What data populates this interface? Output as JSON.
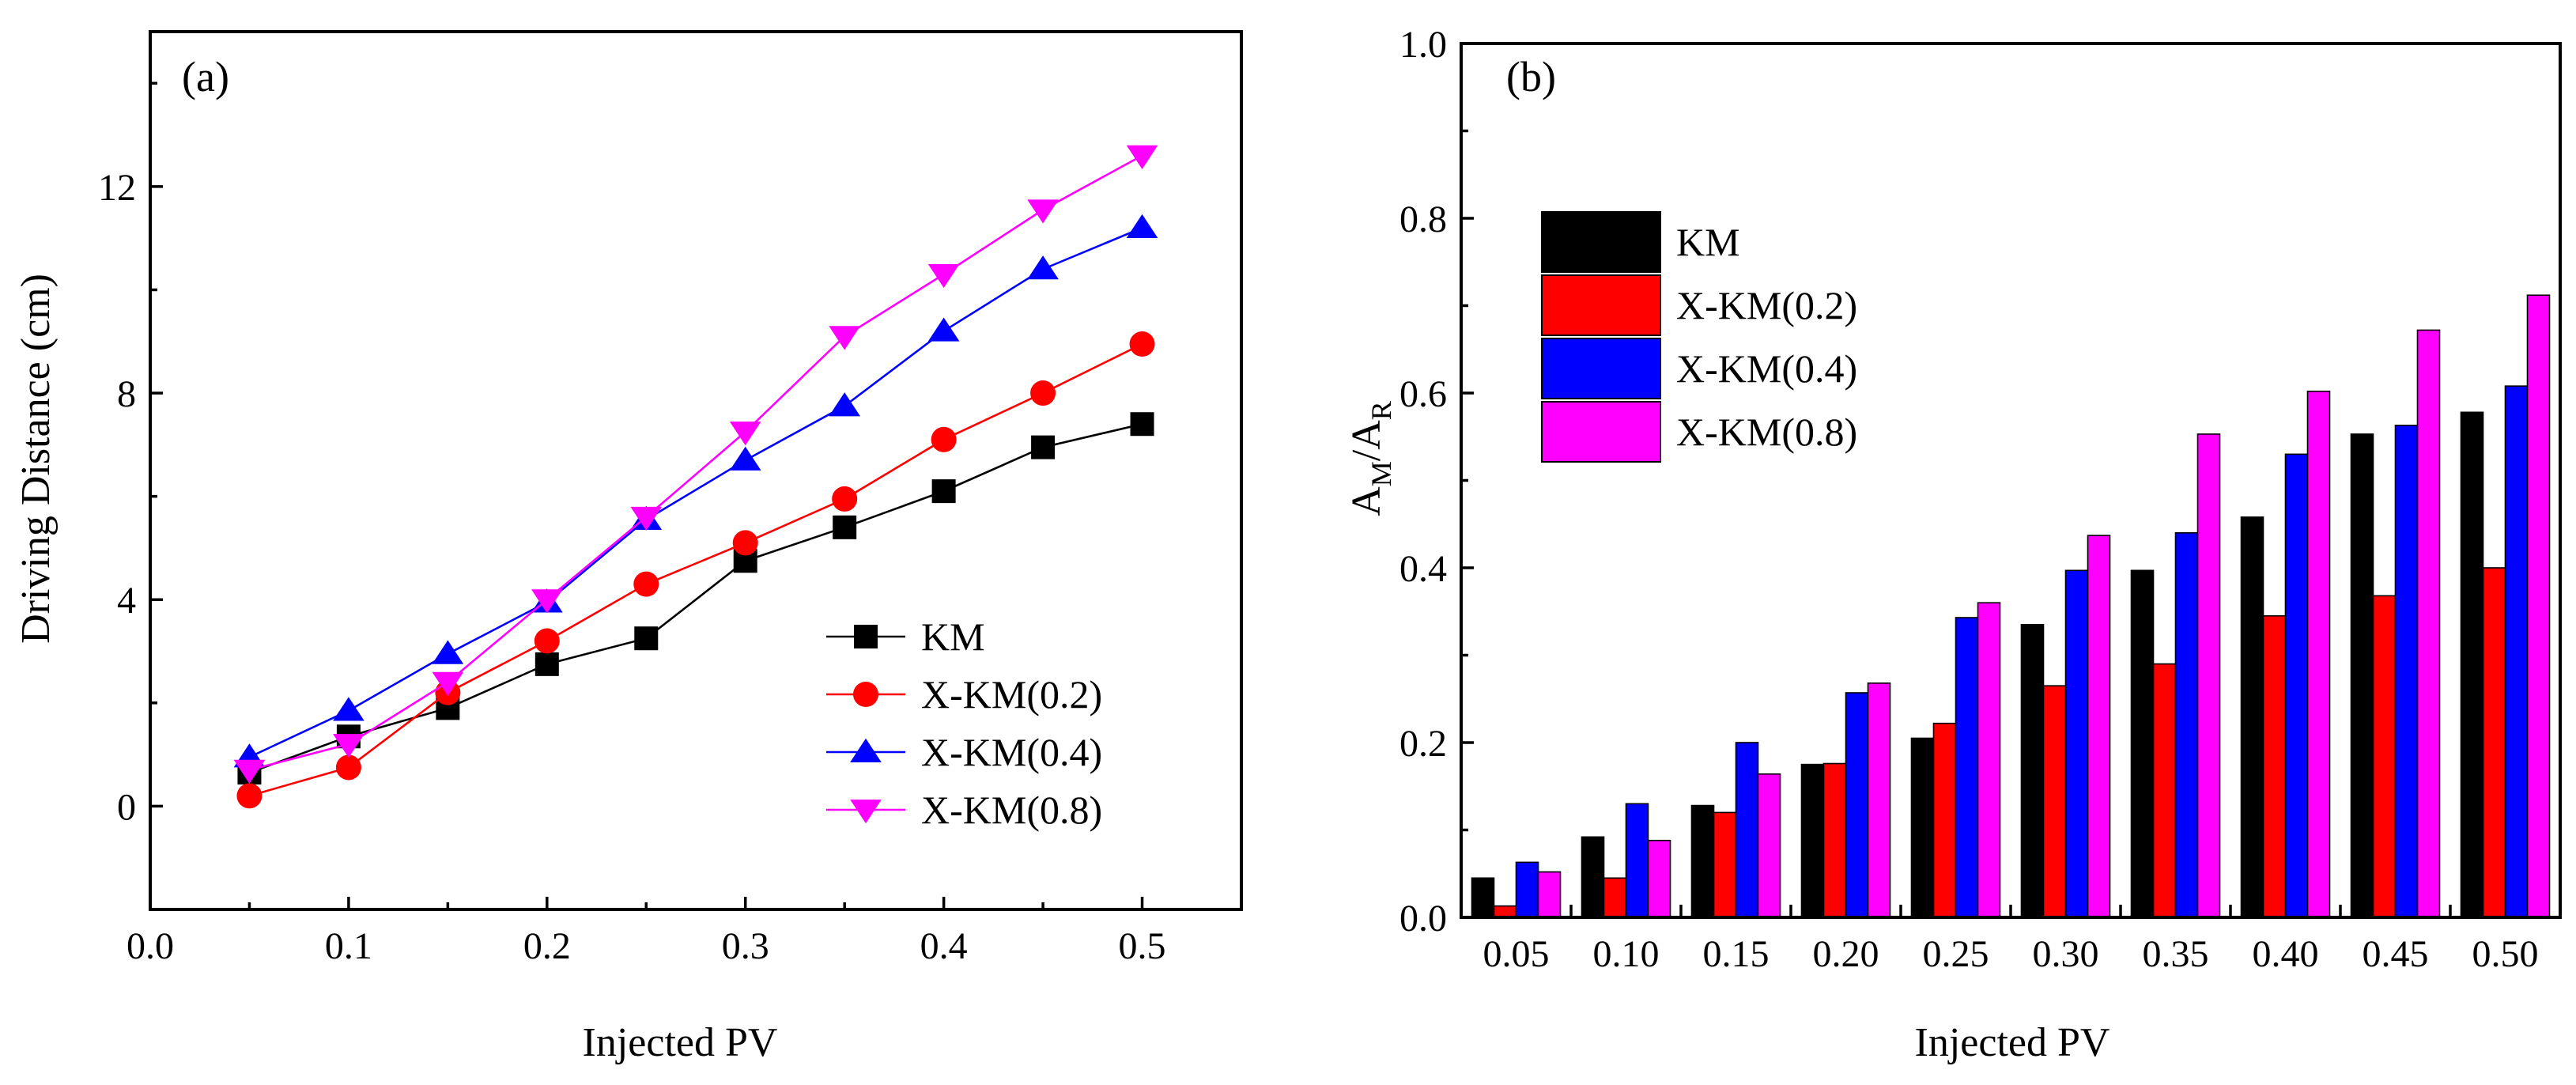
{
  "chart_data": [
    {
      "panel": "(a)",
      "type": "line",
      "xlabel": "Injected PV",
      "ylabel": "Driving Distance (cm)",
      "xlim": [
        0.0,
        0.55
      ],
      "ylim": [
        -2,
        15
      ],
      "xticks": [
        0.0,
        0.1,
        0.2,
        0.3,
        0.4,
        0.5
      ],
      "xtick_labels": [
        "0.0",
        "0.1",
        "0.2",
        "0.3",
        "0.4",
        "0.5"
      ],
      "yticks": [
        0,
        4,
        8,
        12
      ],
      "ytick_labels": [
        "0",
        "4",
        "8",
        "12"
      ],
      "legend_position": "bottom-right",
      "x": [
        0.05,
        0.1,
        0.15,
        0.2,
        0.25,
        0.3,
        0.35,
        0.4,
        0.45,
        0.5
      ],
      "series": [
        {
          "name": "KM",
          "color": "#000000",
          "marker": "square",
          "values": [
            0.65,
            1.35,
            1.9,
            2.75,
            3.25,
            4.75,
            5.4,
            6.1,
            6.95,
            7.4
          ]
        },
        {
          "name": "X-KM(0.2)",
          "color": "#ff0000",
          "marker": "circle",
          "values": [
            0.2,
            0.75,
            2.2,
            3.2,
            4.3,
            5.1,
            5.95,
            7.1,
            8.0,
            8.95
          ]
        },
        {
          "name": "X-KM(0.4)",
          "color": "#0000ff",
          "marker": "triangle-up",
          "values": [
            0.95,
            1.85,
            2.95,
            3.95,
            5.55,
            6.7,
            7.75,
            9.2,
            10.4,
            11.2
          ]
        },
        {
          "name": "X-KM(0.8)",
          "color": "#ff00ff",
          "marker": "triangle-down",
          "values": [
            0.7,
            1.2,
            2.4,
            4.0,
            5.6,
            7.25,
            9.1,
            10.3,
            11.55,
            12.6
          ]
        }
      ]
    },
    {
      "panel": "(b)",
      "type": "bar",
      "xlabel": "Injected PV",
      "ylabel_main": "A",
      "ylabel_sub1": "M",
      "ylabel_sep": "/A",
      "ylabel_sub2": "R",
      "ylim": [
        0.0,
        1.0
      ],
      "yticks": [
        0.0,
        0.2,
        0.4,
        0.6,
        0.8,
        1.0
      ],
      "ytick_labels": [
        "0.0",
        "0.2",
        "0.4",
        "0.6",
        "0.8",
        "1.0"
      ],
      "legend_position": "top-left",
      "categories": [
        "0.05",
        "0.10",
        "0.15",
        "0.20",
        "0.25",
        "0.30",
        "0.35",
        "0.40",
        "0.45",
        "0.50"
      ],
      "series": [
        {
          "name": "KM",
          "color": "#000000",
          "values": [
            0.045,
            0.092,
            0.128,
            0.175,
            0.205,
            0.335,
            0.397,
            0.458,
            0.553,
            0.578
          ]
        },
        {
          "name": "X-KM(0.2)",
          "color": "#ff0000",
          "values": [
            0.013,
            0.045,
            0.12,
            0.176,
            0.222,
            0.265,
            0.29,
            0.345,
            0.368,
            0.4
          ]
        },
        {
          "name": "X-KM(0.4)",
          "color": "#0000ff",
          "values": [
            0.063,
            0.13,
            0.2,
            0.257,
            0.343,
            0.397,
            0.44,
            0.53,
            0.563,
            0.608
          ]
        },
        {
          "name": "X-KM(0.8)",
          "color": "#ff00ff",
          "values": [
            0.052,
            0.088,
            0.164,
            0.268,
            0.36,
            0.437,
            0.553,
            0.602,
            0.672,
            0.712
          ]
        }
      ]
    }
  ]
}
